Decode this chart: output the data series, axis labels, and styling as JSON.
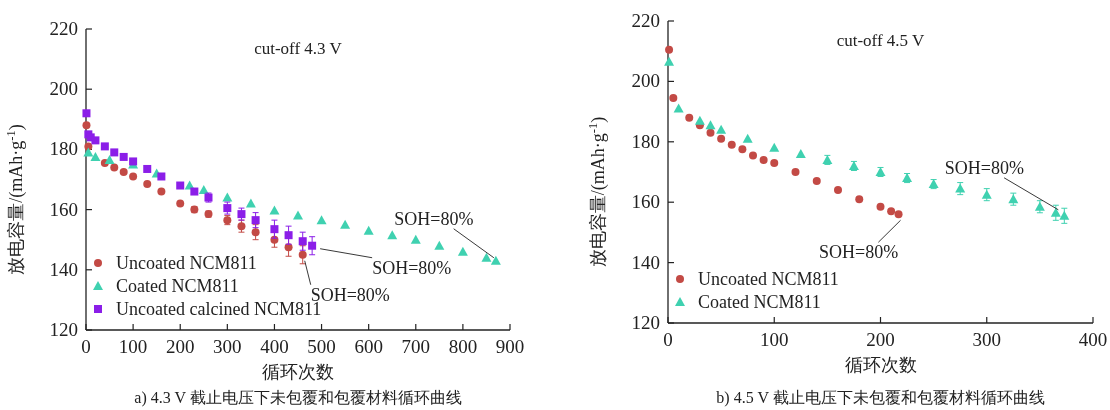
{
  "chart_data": [
    {
      "type": "scatter",
      "title": "cut-off 4.3 V",
      "xlabel": "循环次数",
      "ylabel": "放电容量/(mAh·g$^{-1}$)",
      "xlim": [
        0,
        900
      ],
      "ylim": [
        120,
        220
      ],
      "xticks": [
        0,
        100,
        200,
        300,
        400,
        500,
        600,
        700,
        800,
        900
      ],
      "yticks": [
        120,
        140,
        160,
        180,
        200,
        220
      ],
      "legend": "bottom left",
      "series": [
        {
          "name": "Uncoated NCM811",
          "color": "#c34a45",
          "marker": "circle",
          "x": [
            1,
            5,
            40,
            60,
            80,
            100,
            130,
            160,
            200,
            230,
            260,
            300,
            330,
            360,
            400,
            430,
            460
          ],
          "values": [
            188,
            181,
            175.5,
            174,
            172.5,
            171,
            168.5,
            166,
            162,
            160,
            158.5,
            156.5,
            154.5,
            152.5,
            150,
            147.5,
            145
          ],
          "errors": [
            null,
            null,
            null,
            null,
            null,
            null,
            null,
            null,
            null,
            1,
            1,
            1.5,
            2,
            2.5,
            2.5,
            3,
            3
          ]
        },
        {
          "name": "Coated NCM811",
          "color": "#3fd1b0",
          "marker": "triangle",
          "x": [
            5,
            20,
            50,
            100,
            150,
            220,
            250,
            300,
            350,
            400,
            450,
            500,
            550,
            600,
            650,
            700,
            750,
            800,
            850,
            870
          ],
          "values": [
            179,
            177.5,
            176.5,
            175,
            172,
            168,
            166.5,
            164,
            162,
            159.7,
            158,
            156.5,
            155,
            153,
            151.5,
            150,
            148,
            146,
            144,
            143
          ]
        },
        {
          "name": "Uncoated calcined NCM811",
          "color": "#8b1ee8",
          "marker": "square",
          "x": [
            1,
            5,
            10,
            20,
            40,
            60,
            80,
            100,
            130,
            160,
            200,
            230,
            260,
            300,
            330,
            360,
            400,
            430,
            460,
            480
          ],
          "values": [
            192,
            185,
            184,
            183,
            181,
            179,
            177.5,
            176,
            173.5,
            171,
            168,
            166,
            164,
            160.5,
            158.5,
            156.5,
            153.5,
            151.5,
            149.5,
            148
          ],
          "errors": [
            null,
            null,
            null,
            null,
            null,
            null,
            null,
            null,
            null,
            null,
            null,
            null,
            1.5,
            2,
            2,
            2.5,
            3,
            3,
            3,
            3
          ]
        }
      ],
      "annotations": [
        {
          "text": "SOH=80%",
          "x": 870,
          "y": 143
        },
        {
          "text": "SOH=80%",
          "x": 480,
          "y": 148
        },
        {
          "text": "SOH=80%",
          "x": 460,
          "y": 145
        },
        "a) 4.3 V 截止电压下未包覆和包覆材料循环曲线"
      ]
    },
    {
      "type": "scatter",
      "title": "cut-off 4.5 V",
      "xlabel": "循环次数",
      "ylabel": "放电容量/(mAh·g$^{-1}$)",
      "xlim": [
        0,
        400
      ],
      "ylim": [
        120,
        220
      ],
      "xticks": [
        0,
        100,
        200,
        300,
        400
      ],
      "yticks": [
        120,
        140,
        160,
        180,
        200,
        220
      ],
      "legend": "bottom left",
      "series": [
        {
          "name": "Uncoated NCM811",
          "color": "#c34a45",
          "marker": "circle",
          "x": [
            1,
            5,
            20,
            30,
            40,
            50,
            60,
            70,
            80,
            90,
            100,
            120,
            140,
            160,
            180,
            200,
            210,
            217
          ],
          "values": [
            210.5,
            194.5,
            188,
            185.5,
            183,
            181,
            179,
            177.5,
            175.5,
            174,
            173,
            170,
            167,
            164,
            161,
            158.5,
            157,
            156
          ]
        },
        {
          "name": "Coated NCM811",
          "color": "#3fd1b0",
          "marker": "triangle",
          "x": [
            1,
            10,
            30,
            40,
            50,
            75,
            100,
            125,
            150,
            175,
            200,
            225,
            250,
            275,
            300,
            325,
            350,
            365,
            373
          ],
          "values": [
            206.5,
            191,
            187,
            185.5,
            184,
            181,
            178,
            176,
            174,
            172,
            170,
            168,
            166,
            164.5,
            162.5,
            161,
            158.5,
            156.5,
            155.5
          ],
          "errors": [
            null,
            null,
            null,
            null,
            null,
            null,
            null,
            null,
            1.5,
            1.5,
            1.5,
            1.5,
            1.5,
            2,
            2,
            2,
            2,
            2.5,
            2.5
          ]
        }
      ],
      "annotations": [
        {
          "text": "SOH=80%",
          "x": 373,
          "y": 155.5
        },
        {
          "text": "SOH=80%",
          "x": 217,
          "y": 156
        },
        "b) 4.5 V 截止电压下未包覆和包覆材料循环曲线"
      ]
    }
  ]
}
